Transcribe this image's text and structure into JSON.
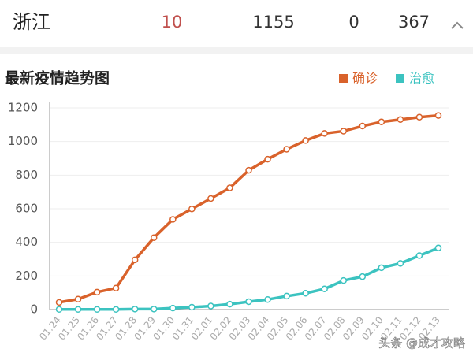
{
  "header": {
    "region": "浙江",
    "stats": [
      "10",
      "1155",
      "0",
      "367"
    ]
  },
  "watermark": "头条 @成才攻略",
  "chart_data": {
    "type": "line",
    "title": "最新疫情趋势图",
    "categories": [
      "01.24",
      "01.25",
      "01.26",
      "01.27",
      "01.28",
      "01.29",
      "01.30",
      "01.31",
      "02.01",
      "02.02",
      "02.03",
      "02.04",
      "02.05",
      "02.06",
      "02.07",
      "02.08",
      "02.09",
      "02.10",
      "02.11",
      "02.12",
      "02.13"
    ],
    "series": [
      {
        "name": "确诊",
        "color": "#d9622b",
        "values": [
          43,
          62,
          104,
          128,
          296,
          428,
          537,
          599,
          661,
          724,
          829,
          895,
          954,
          1006,
          1048,
          1062,
          1092,
          1117,
          1131,
          1145,
          1155
        ]
      },
      {
        "name": "治愈",
        "color": "#3cc3c0",
        "values": [
          1,
          1,
          1,
          1,
          3,
          3,
          9,
          14,
          21,
          32,
          47,
          60,
          80,
          97,
          123,
          173,
          196,
          249,
          275,
          321,
          367
        ]
      }
    ],
    "ylim": [
      0,
      1200
    ],
    "yticks": [
      0,
      200,
      400,
      600,
      800,
      1000,
      1200
    ],
    "grid": true,
    "legend": "top-right"
  }
}
